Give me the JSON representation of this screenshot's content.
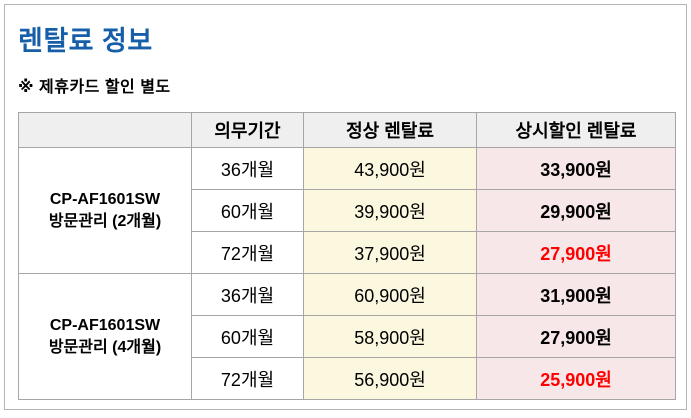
{
  "page": {
    "title": "렌탈료 정보",
    "note": "※ 제휴카드 할인 별도"
  },
  "colors": {
    "title_blue": "#165FA8",
    "header_bg": "#EFEFEF",
    "normal_price_bg": "#FCF8E0",
    "discount_price_bg": "#F8E7E9",
    "highlight_red": "#FF0000",
    "border_gray": "#A6A6A6"
  },
  "table": {
    "headers": [
      "",
      "의무기간",
      "정상 렌탈료",
      "상시할인 렌탈료"
    ],
    "groups": [
      {
        "model": "CP-AF1601SW",
        "label": "방문관리 (2개월)",
        "rows": [
          {
            "term": "36개월",
            "normal": "43,900원",
            "discount": "33,900원"
          },
          {
            "term": "60개월",
            "normal": "39,900원",
            "discount": "29,900원"
          },
          {
            "term": "72개월",
            "normal": "37,900원",
            "discount": "27,900원"
          }
        ]
      },
      {
        "model": "CP-AF1601SW",
        "label": "방문관리 (4개월)",
        "rows": [
          {
            "term": "36개월",
            "normal": "60,900원",
            "discount": "31,900원"
          },
          {
            "term": "60개월",
            "normal": "58,900원",
            "discount": "27,900원"
          },
          {
            "term": "72개월",
            "normal": "56,900원",
            "discount": "25,900원"
          }
        ]
      }
    ]
  }
}
